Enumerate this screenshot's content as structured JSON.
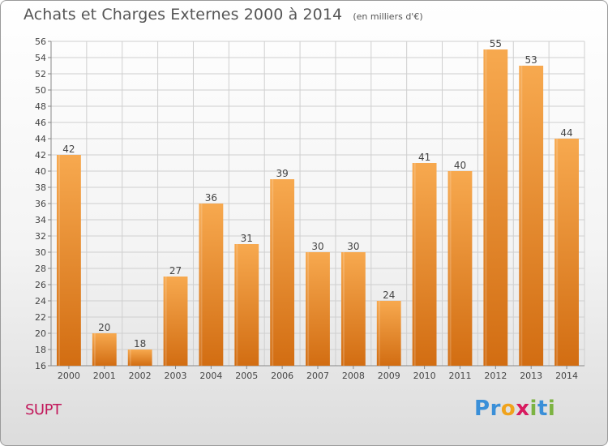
{
  "title": "Achats et Charges Externes 2000 à 2014",
  "unit": "(en milliers d'€)",
  "place": "SUPT",
  "logo": {
    "text": "Proxiti",
    "letters": [
      {
        "ch": "P",
        "color": "#3a8fd8"
      },
      {
        "ch": "r",
        "color": "#3a8fd8"
      },
      {
        "ch": "o",
        "color": "#f0a31c"
      },
      {
        "ch": "x",
        "color": "#d81b60"
      },
      {
        "ch": "i",
        "color": "#7cb342"
      },
      {
        "ch": "t",
        "color": "#3a8fd8"
      },
      {
        "ch": "i",
        "color": "#7cb342"
      }
    ]
  },
  "colors": {
    "bar_light": "#f7a94f",
    "bar_dark": "#d26d12",
    "grid": "#cfcfcf",
    "axis": "#888888"
  },
  "chart_data": {
    "type": "bar",
    "title": "Achats et Charges Externes 2000 à 2014",
    "subtitle": "(en milliers d'€)",
    "xlabel": "",
    "ylabel": "",
    "categories": [
      "2000",
      "2001",
      "2002",
      "2003",
      "2004",
      "2005",
      "2006",
      "2007",
      "2008",
      "2009",
      "2010",
      "2011",
      "2012",
      "2013",
      "2014"
    ],
    "values": [
      42,
      20,
      18,
      27,
      36,
      31,
      39,
      30,
      30,
      24,
      41,
      40,
      55,
      53,
      44
    ],
    "ylim": [
      16,
      56
    ],
    "ytick_step": 2,
    "grid": true,
    "data_labels": true
  }
}
